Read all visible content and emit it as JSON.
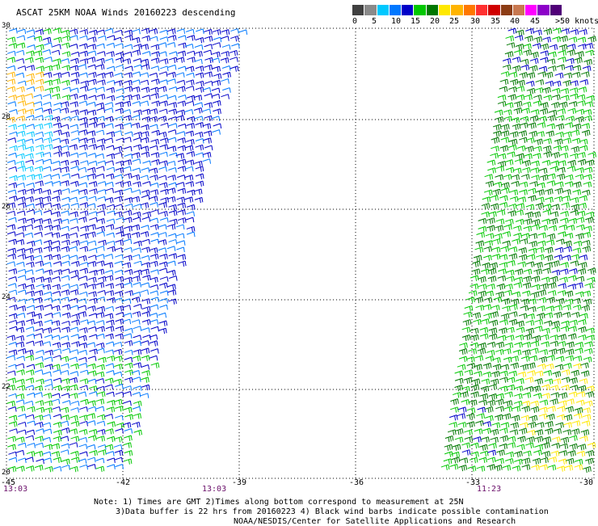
{
  "title": "ASCAT 25KM NOAA Winds 20160223 descending",
  "legend": {
    "colors": [
      "#404040",
      "#8a8a8a",
      "#00c8ff",
      "#0078ff",
      "#0000c8",
      "#00c800",
      "#007800",
      "#ffe800",
      "#ffb400",
      "#ff7800",
      "#ff3030",
      "#d00000",
      "#8c3c14",
      "#c87850",
      "#ff00ff",
      "#8c00c8",
      "#500078"
    ],
    "labels": [
      "0",
      "5",
      "10",
      "15",
      "20",
      "25",
      "30",
      "35",
      "40",
      "45",
      ">50 knots"
    ]
  },
  "map": {
    "lat_labels": [
      "30",
      "28",
      "26",
      "24",
      "22",
      "20"
    ],
    "lon_labels": [
      "-45",
      "-42",
      "-39",
      "-36",
      "-33",
      "-30"
    ],
    "time_labels": [
      "13:03",
      "13:03",
      "11:23"
    ]
  },
  "notes": {
    "line1": "Note: 1) Times are GMT 2)Times along bottom correspond to measurement at 25N",
    "line2": "3)Data buffer is 22 hrs from 20160223 4) Black wind barbs indicate possible contamination",
    "line3": "NOAA/NESDIS/Center for Satellite Applications and Research"
  }
}
